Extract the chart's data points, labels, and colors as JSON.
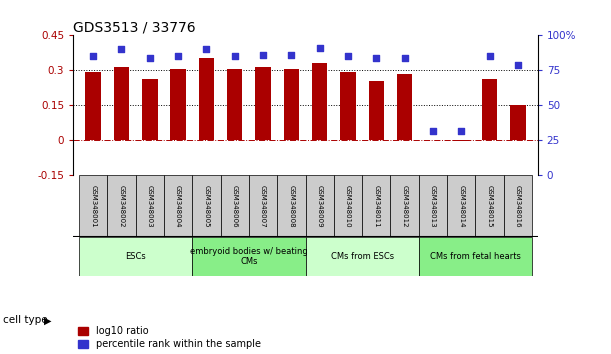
{
  "title": "GDS3513 / 33776",
  "samples": [
    "GSM348001",
    "GSM348002",
    "GSM348003",
    "GSM348004",
    "GSM348005",
    "GSM348006",
    "GSM348007",
    "GSM348008",
    "GSM348009",
    "GSM348010",
    "GSM348011",
    "GSM348012",
    "GSM348013",
    "GSM348014",
    "GSM348015",
    "GSM348016"
  ],
  "log10_ratio": [
    0.295,
    0.315,
    0.265,
    0.305,
    0.355,
    0.305,
    0.315,
    0.305,
    0.33,
    0.295,
    0.255,
    0.285,
    0.002,
    -0.002,
    0.265,
    0.15
  ],
  "percentile_rank": [
    85,
    90,
    84,
    85,
    90,
    85,
    86,
    86,
    91,
    85,
    84,
    84,
    32,
    32,
    85,
    79
  ],
  "bar_color": "#aa0000",
  "dot_color": "#3333cc",
  "ylim_left": [
    -0.15,
    0.45
  ],
  "ylim_right": [
    0,
    100
  ],
  "yticks_left": [
    -0.15,
    0,
    0.15,
    0.3,
    0.45
  ],
  "yticks_right": [
    0,
    25,
    50,
    75,
    100
  ],
  "ytick_labels_right": [
    "0",
    "25",
    "50",
    "75",
    "100%"
  ],
  "hline_y": [
    0.15,
    0.3
  ],
  "cell_types": [
    {
      "label": "ESCs",
      "start": 0,
      "end": 4,
      "color": "#ccffcc"
    },
    {
      "label": "embryoid bodies w/ beating\nCMs",
      "start": 4,
      "end": 8,
      "color": "#88ee88"
    },
    {
      "label": "CMs from ESCs",
      "start": 8,
      "end": 12,
      "color": "#ccffcc"
    },
    {
      "label": "CMs from fetal hearts",
      "start": 12,
      "end": 16,
      "color": "#88ee88"
    }
  ],
  "legend_ratio_label": "log10 ratio",
  "legend_pct_label": "percentile rank within the sample",
  "cell_type_label": "cell type",
  "background_color": "#ffffff",
  "n_samples": 16,
  "bar_width": 0.55
}
